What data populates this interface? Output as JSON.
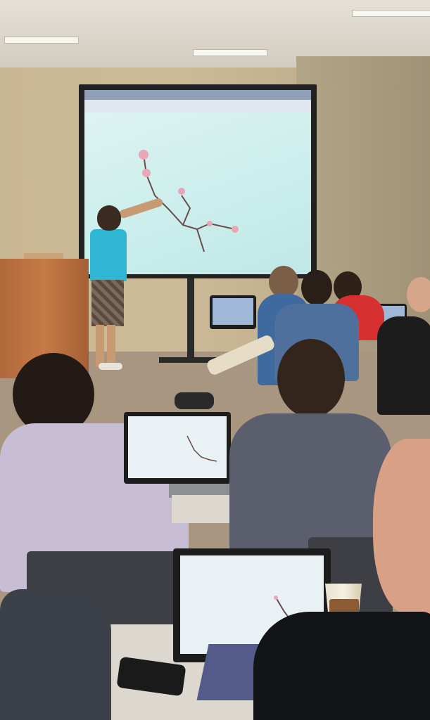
{
  "scene": {
    "description_colors": {
      "wall": "#c9b693",
      "screen": "#d8f2f0",
      "podium": "#c67a45",
      "presenter_shirt": "#2fb6d3"
    }
  }
}
